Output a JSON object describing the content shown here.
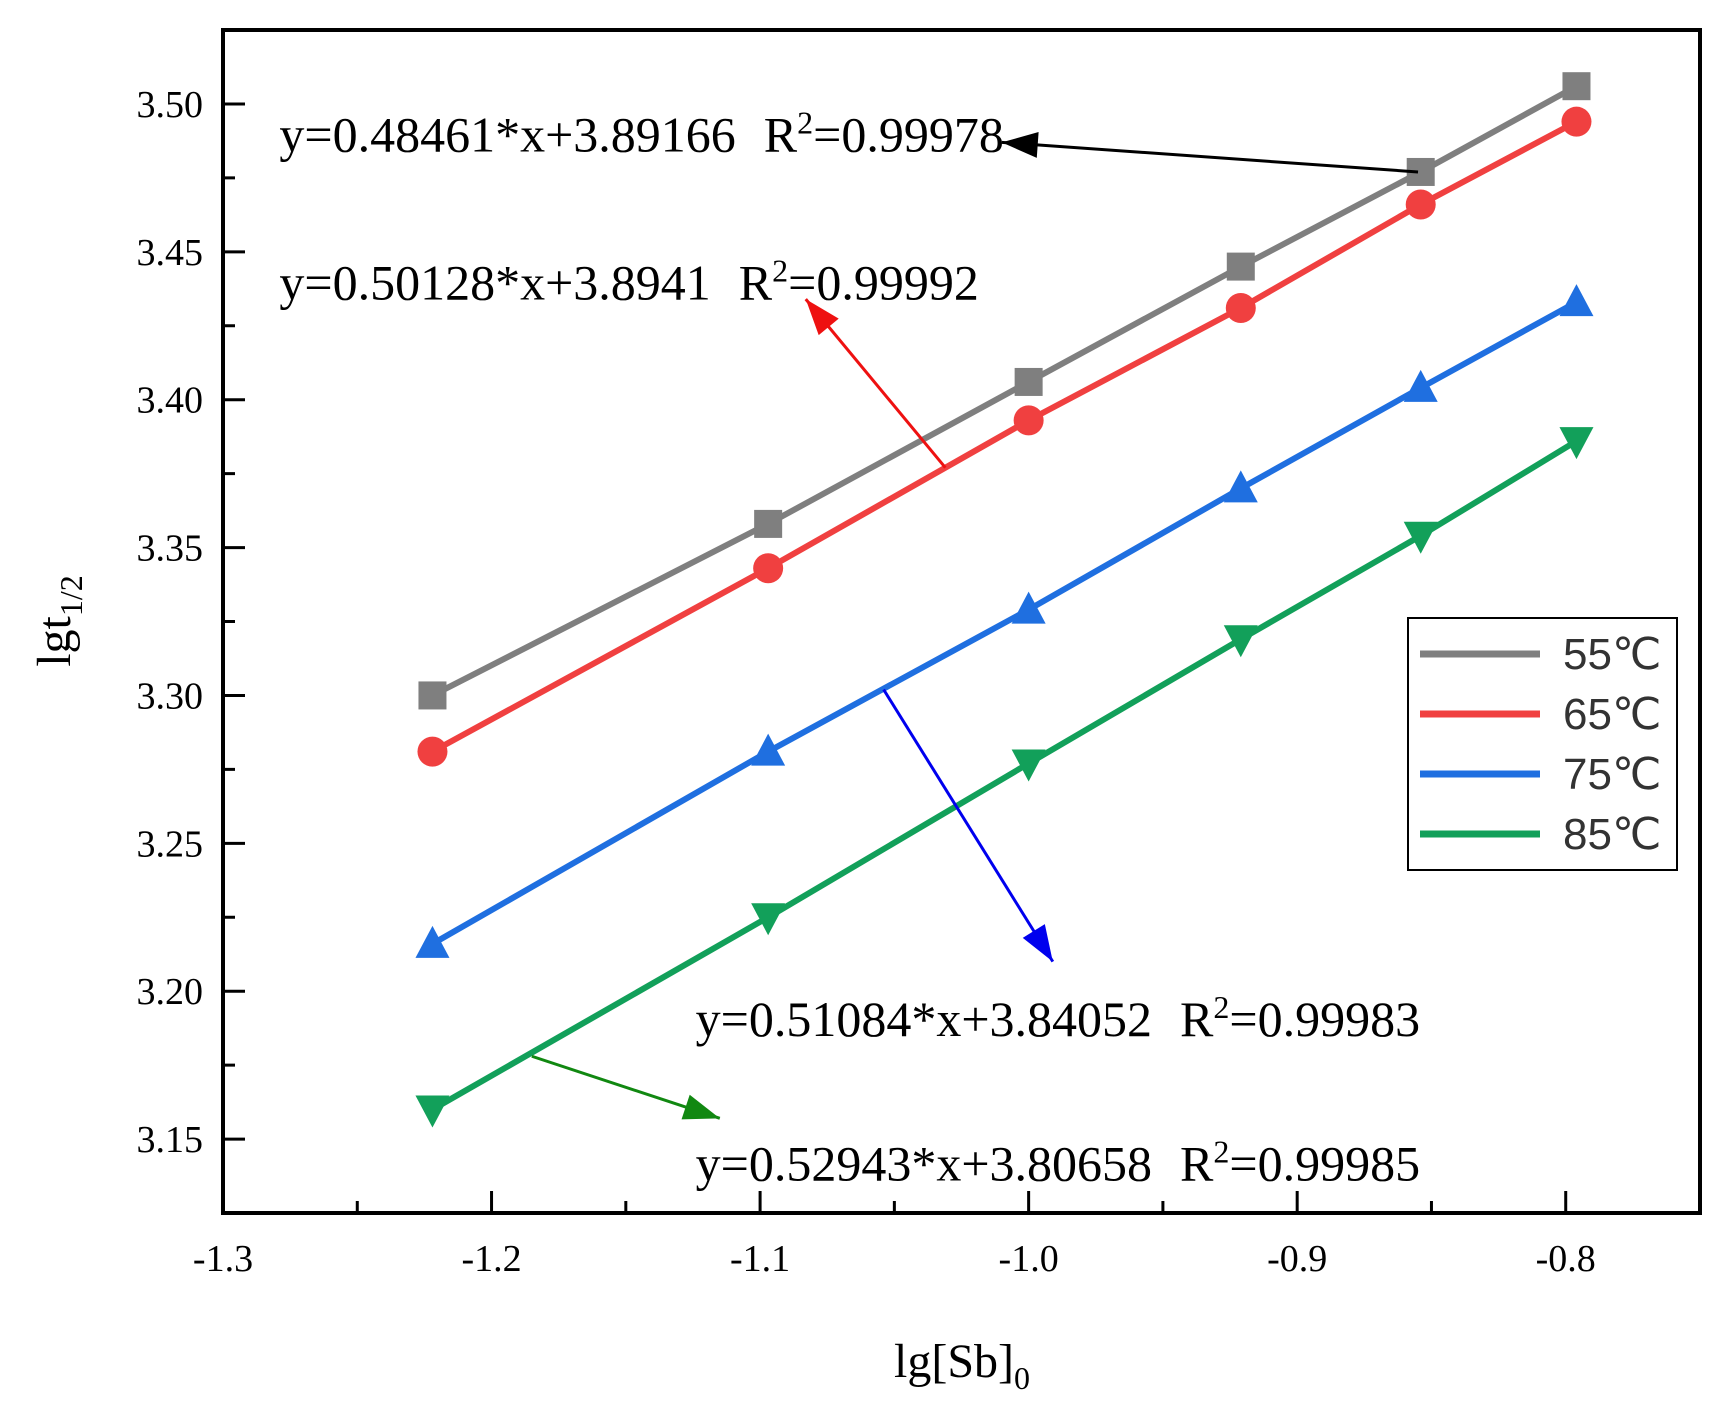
{
  "chart_data": {
    "type": "line",
    "xlabel": "lg[Sb]",
    "xlabel_sub": "0",
    "ylabel": "lgt",
    "ylabel_sub": "1/2",
    "xlim": [
      -1.3,
      -0.75
    ],
    "ylim": [
      3.125,
      3.525
    ],
    "x_ticks": [
      -1.3,
      -1.2,
      -1.1,
      -1.0,
      -0.9,
      -0.8
    ],
    "x_tick_labels": [
      "-1.3",
      "-1.2",
      "-1.1",
      "-1.0",
      "-0.9",
      "-0.8"
    ],
    "y_ticks": [
      3.15,
      3.2,
      3.25,
      3.3,
      3.35,
      3.4,
      3.45,
      3.5
    ],
    "y_tick_labels": [
      "3.15",
      "3.20",
      "3.25",
      "3.30",
      "3.35",
      "3.40",
      "3.45",
      "3.50"
    ],
    "x": [
      -1.222,
      -1.097,
      -1.0,
      -0.921,
      -0.854,
      -0.796
    ],
    "series": [
      {
        "name": "55℃",
        "color": "#7f7f7f",
        "marker": "square",
        "values": [
          3.3,
          3.358,
          3.406,
          3.445,
          3.477,
          3.506
        ]
      },
      {
        "name": "65℃",
        "color": "#f04040",
        "marker": "circle",
        "values": [
          3.281,
          3.343,
          3.393,
          3.431,
          3.466,
          3.494
        ]
      },
      {
        "name": "75℃",
        "color": "#1f6fe0",
        "marker": "triangle-up",
        "values": [
          3.216,
          3.281,
          3.329,
          3.37,
          3.404,
          3.433
        ]
      },
      {
        "name": "85℃",
        "color": "#12a05a",
        "marker": "triangle-down",
        "values": [
          3.16,
          3.225,
          3.277,
          3.319,
          3.354,
          3.386
        ]
      }
    ],
    "annotations": [
      {
        "eq": "y=0.48461*x+3.89166",
        "r2_label": "R",
        "r2_sup": "2",
        "r2_value": "=0.99978",
        "arrow_color": "#000000",
        "text_x": -1.279,
        "text_y": 3.49,
        "arrow_from": [
          -0.855,
          3.477
        ],
        "arrow_to": [
          -1.01,
          3.487
        ]
      },
      {
        "eq": "y=0.50128*x+3.8941",
        "r2_label": "R",
        "r2_sup": "2",
        "r2_value": "=0.99992",
        "arrow_color": "#ee1111",
        "text_x": -1.279,
        "text_y": 3.44,
        "arrow_from": [
          -1.031,
          3.377
        ],
        "arrow_to": [
          -1.083,
          3.434
        ]
      },
      {
        "eq": "y=0.51084*x+3.84052",
        "r2_label": "R",
        "r2_sup": "2",
        "r2_value": "=0.99983",
        "arrow_color": "#0000ee",
        "text_x": -1.124,
        "text_y": 3.191,
        "arrow_from": [
          -1.054,
          3.302
        ],
        "arrow_to": [
          -0.991,
          3.21
        ]
      },
      {
        "eq": "y=0.52943*x+3.80658",
        "r2_label": "R",
        "r2_sup": "2",
        "r2_value": "=0.99985",
        "arrow_color": "#118811",
        "text_x": -1.124,
        "text_y": 3.142,
        "arrow_from": [
          -1.185,
          3.178
        ],
        "arrow_to": [
          -1.115,
          3.157
        ]
      }
    ],
    "legend_position": "right",
    "grid": false
  }
}
